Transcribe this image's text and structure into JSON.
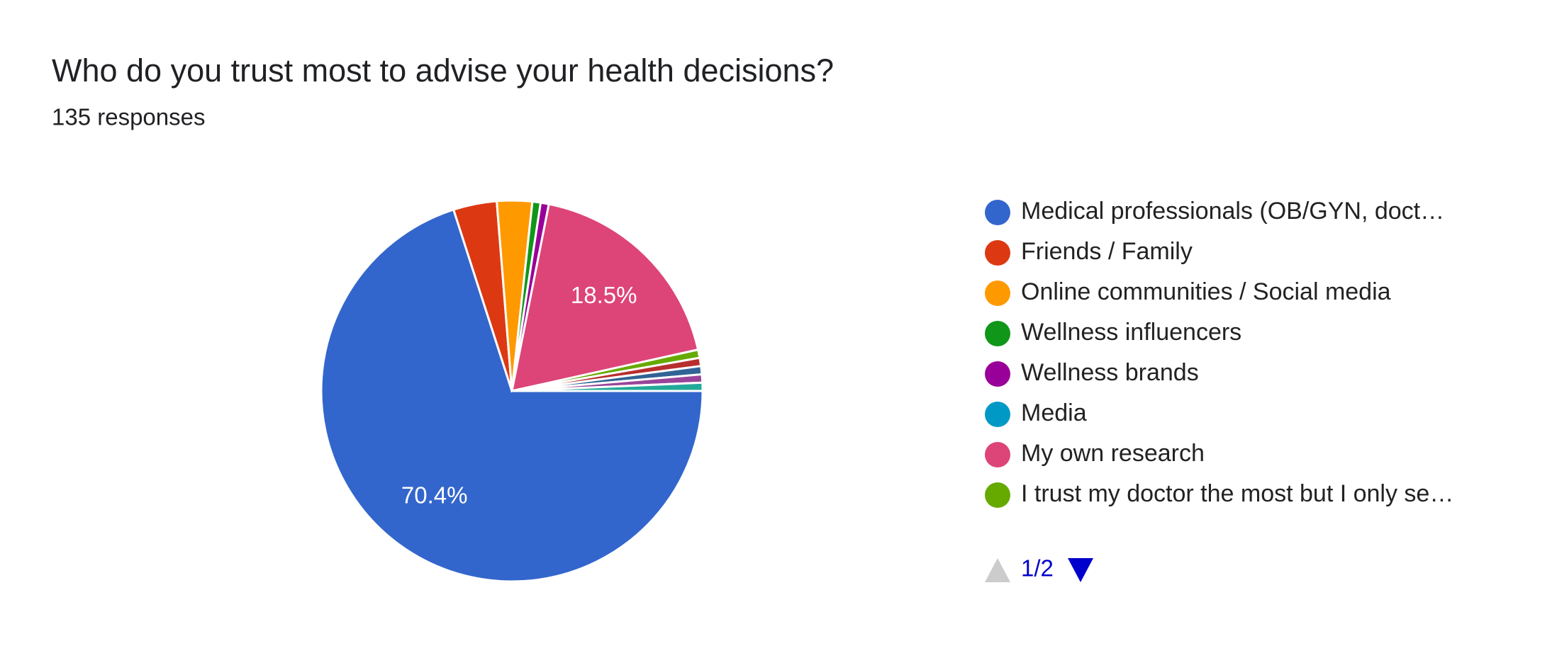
{
  "chart_data": {
    "type": "pie",
    "title": "Who do you trust most to advise your health decisions?",
    "subtitle": "135 responses",
    "categories": [
      "Medical professionals (OB/GYN, doct…",
      "Friends / Family",
      "Online communities / Social media",
      "Wellness influencers",
      "Wellness brands",
      "Media",
      "My own research",
      "I trust my doctor the most but I only se…",
      null,
      null,
      null,
      null
    ],
    "values": [
      70.4,
      3.7,
      3.0,
      0.7,
      0.7,
      0,
      18.5,
      0.7,
      0.7,
      0.7,
      0.7,
      0.7
    ],
    "value_labels": [
      "70.4%",
      null,
      null,
      null,
      null,
      null,
      "18.5%",
      null,
      null,
      null,
      null,
      null
    ],
    "colors": [
      "#3366cc",
      "#dc3912",
      "#ff9900",
      "#109618",
      "#990099",
      "#0099c6",
      "#dd4477",
      "#66aa00",
      "#b82e2e",
      "#316395",
      "#994499",
      "#22aa99"
    ],
    "legend_page": "1/2"
  }
}
